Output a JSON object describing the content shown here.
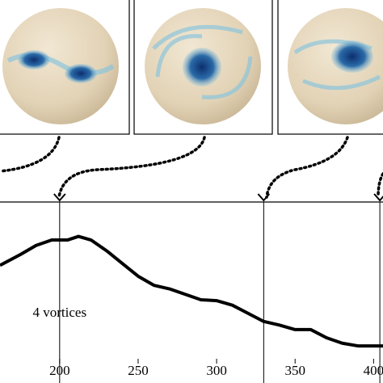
{
  "chart_data": {
    "type": "line",
    "x": [
      162,
      175,
      185,
      195,
      205,
      212,
      220,
      230,
      240,
      250,
      260,
      270,
      280,
      290,
      300,
      310,
      320,
      330,
      340,
      350,
      360,
      370,
      380,
      390,
      400,
      406
    ],
    "values": [
      0.65,
      0.71,
      0.76,
      0.79,
      0.79,
      0.81,
      0.79,
      0.73,
      0.66,
      0.59,
      0.54,
      0.52,
      0.49,
      0.46,
      0.455,
      0.43,
      0.385,
      0.34,
      0.32,
      0.295,
      0.295,
      0.25,
      0.22,
      0.205,
      0.205,
      0.205
    ],
    "color": "#000000",
    "xlim": [
      162,
      406
    ],
    "xticks": [
      200,
      250,
      300,
      350,
      400
    ],
    "ylim": [
      0,
      1
    ],
    "events": [
      200,
      330,
      404
    ],
    "annotations": [
      "4 vortices"
    ]
  }
}
